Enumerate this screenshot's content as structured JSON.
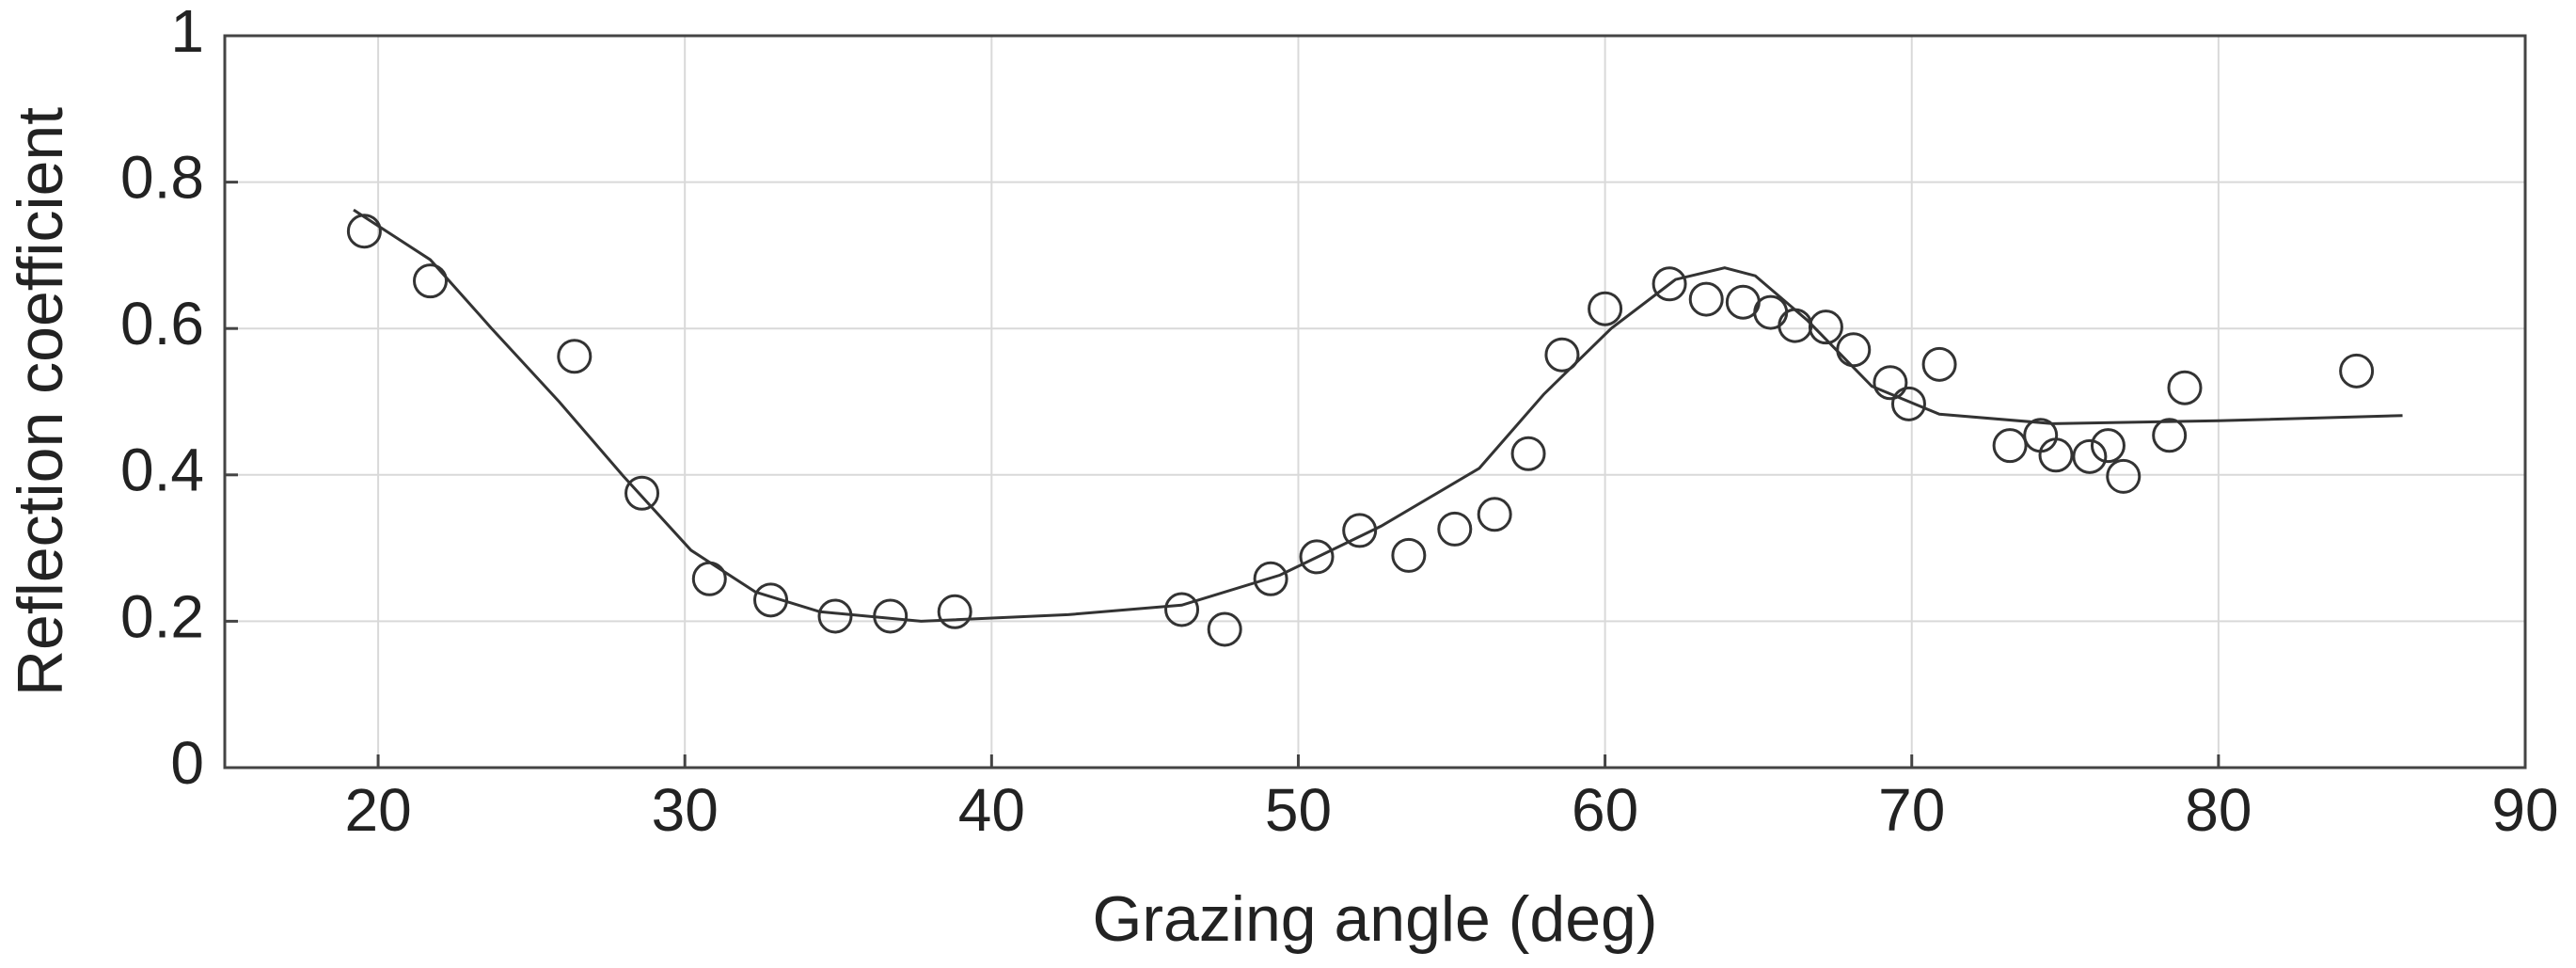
{
  "chart_data": {
    "type": "scatter",
    "x_label": "Grazing angle (deg)",
    "y_label": "Reflection coefficient",
    "xlim": [
      15,
      90
    ],
    "xticks": [
      20,
      30,
      40,
      50,
      60,
      70,
      80,
      90
    ],
    "ylim": [
      0,
      1
    ],
    "yticks": [
      0,
      0.2,
      0.4,
      0.6,
      0.8,
      1
    ],
    "grid": true,
    "series": [
      {
        "mode": "markers",
        "color": "#333333",
        "x": [
          19.55,
          21.7,
          26.4,
          28.6,
          30.8,
          32.8,
          34.9,
          36.7,
          38.8,
          46.2,
          47.6,
          49.1,
          50.6,
          52.0,
          53.6,
          55.1,
          56.4,
          57.5,
          58.6,
          60.0,
          62.1,
          63.3,
          64.5,
          65.4,
          66.2,
          67.2,
          68.1,
          69.3,
          69.9,
          70.9,
          73.2,
          74.2,
          74.7,
          75.8,
          76.4,
          76.9,
          78.4,
          78.9,
          84.5
        ],
        "values": [
          0.733,
          0.665,
          0.562,
          0.375,
          0.258,
          0.229,
          0.207,
          0.207,
          0.213,
          0.216,
          0.189,
          0.258,
          0.288,
          0.324,
          0.29,
          0.326,
          0.346,
          0.429,
          0.564,
          0.627,
          0.661,
          0.64,
          0.636,
          0.622,
          0.604,
          0.602,
          0.571,
          0.526,
          0.497,
          0.551,
          0.44,
          0.454,
          0.427,
          0.425,
          0.44,
          0.398,
          0.454,
          0.519,
          0.542
        ]
      },
      {
        "mode": "line",
        "color": "#333333",
        "x": [
          19.2,
          21.7,
          23.7,
          25.9,
          28.0,
          30.2,
          32.3,
          34.4,
          37.7,
          42.5,
          46.2,
          49.4,
          52.7,
          55.9,
          58.0,
          60.2,
          62.3,
          63.9,
          64.9,
          66.6,
          68.7,
          70.9,
          74.6,
          80.0,
          86.0
        ],
        "values": [
          0.762,
          0.694,
          0.6,
          0.5,
          0.398,
          0.297,
          0.24,
          0.213,
          0.2,
          0.209,
          0.222,
          0.263,
          0.33,
          0.409,
          0.51,
          0.6,
          0.667,
          0.683,
          0.672,
          0.611,
          0.521,
          0.483,
          0.47,
          0.474,
          0.481
        ]
      }
    ]
  }
}
